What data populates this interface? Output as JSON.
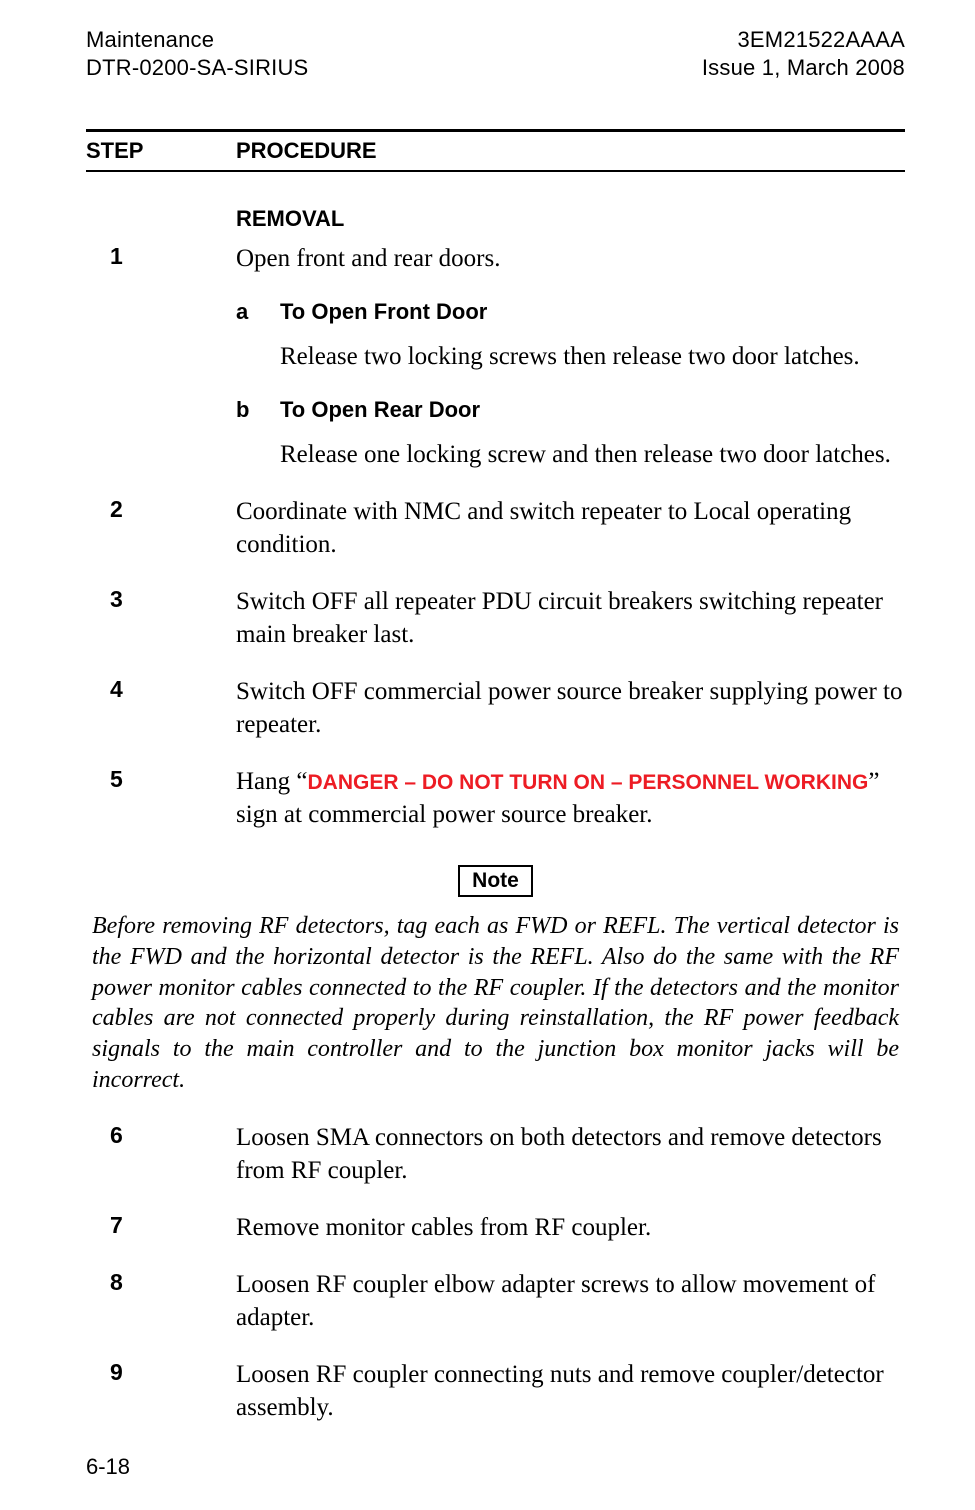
{
  "header": {
    "left_line1": "Maintenance",
    "left_line2": "DTR-0200-SA-SIRIUS",
    "right_line1": "3EM21522AAAA",
    "right_line2": "Issue 1, March 2008"
  },
  "table_header": {
    "col1": "STEP",
    "col2": "PROCEDURE"
  },
  "section_title": "REMOVAL",
  "steps": {
    "s1": {
      "num": "1",
      "text": "Open front and rear doors.",
      "sub_a": {
        "letter": "a",
        "title": "To Open Front Door",
        "body": "Release two locking screws then release two door latches."
      },
      "sub_b": {
        "letter": "b",
        "title": "To Open Rear Door",
        "body": "Release one locking screw and then release two door latches."
      }
    },
    "s2": {
      "num": "2",
      "text": "Coordinate with NMC and switch repeater to Local operating condition."
    },
    "s3": {
      "num": "3",
      "text": "Switch OFF all repeater PDU circuit breakers switching repeater main breaker last."
    },
    "s4": {
      "num": "4",
      "text": "Switch OFF commercial power source breaker supplying power to repeater."
    },
    "s5": {
      "num": "5",
      "pre": "Hang “",
      "danger": "DANGER – DO NOT TURN ON – PERSONNEL WORKING",
      "post": "” sign at commercial power source breaker."
    },
    "s6": {
      "num": "6",
      "text": "Loosen SMA connectors on both detectors and remove detectors from RF coupler."
    },
    "s7": {
      "num": "7",
      "text": "Remove monitor cables from RF coupler."
    },
    "s8": {
      "num": "8",
      "text": "Loosen RF coupler elbow adapter screws to allow movement of adapter."
    },
    "s9": {
      "num": "9",
      "text": "Loosen RF coupler connecting nuts and remove coupler/detector assembly."
    }
  },
  "note": {
    "label": "Note",
    "body": "Before removing RF detectors, tag each as FWD or REFL. The vertical detector is the FWD and the horizontal detector is the REFL. Also do the same with the RF power monitor cables connected to the RF coupler. If the detectors and the monitor cables are not connected properly during reinstallation, the RF power feedback signals to the main controller and to the junction box monitor jacks will be incorrect."
  },
  "page_number": "6-18",
  "colors": {
    "danger": "#ed1c24",
    "text": "#000000",
    "background": "#ffffff"
  }
}
